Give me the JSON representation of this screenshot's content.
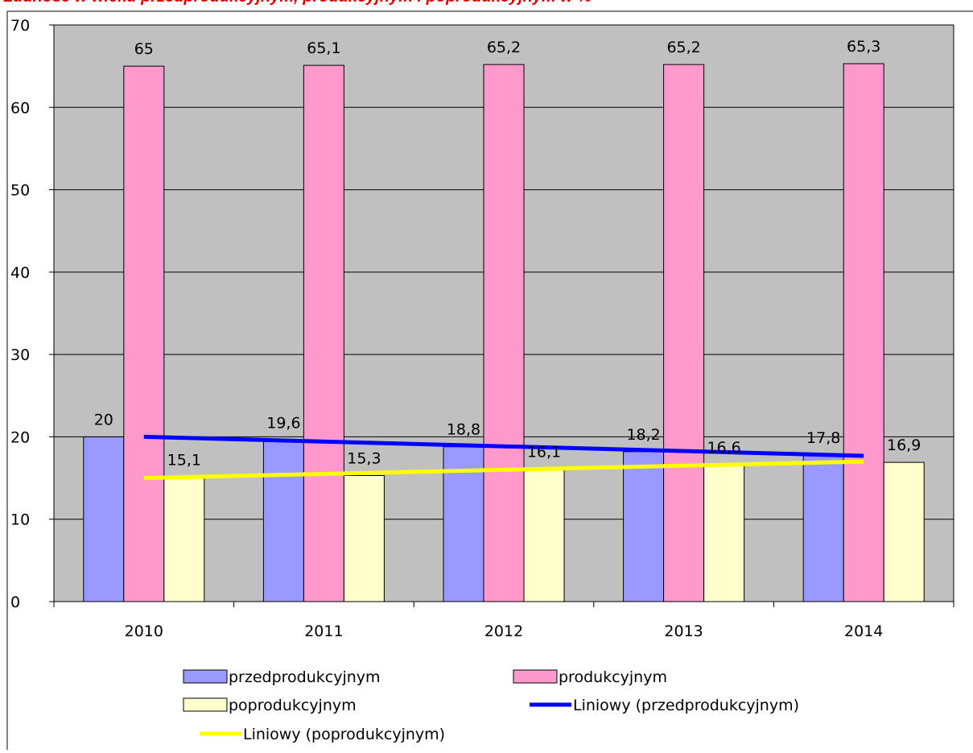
{
  "chart_data": {
    "type": "bar",
    "title": "",
    "xlabel": "",
    "ylabel": "",
    "categories": [
      "2010",
      "2011",
      "2012",
      "2013",
      "2014"
    ],
    "ylim": [
      0,
      70
    ],
    "yticks": [
      "0",
      "10",
      "20",
      "30",
      "40",
      "50",
      "60",
      "70"
    ],
    "grid": true,
    "legend_position": "bottom",
    "series": [
      {
        "name": "przedprodukcyjnym",
        "kind": "bar",
        "color": "#9999ff",
        "values": [
          20,
          19.6,
          18.8,
          18.2,
          17.8
        ],
        "labels": [
          "20",
          "19,6",
          "18,8",
          "18,2",
          "17,8"
        ]
      },
      {
        "name": "produkcyjnym",
        "kind": "bar",
        "color": "#ff99cc",
        "values": [
          65,
          65.1,
          65.2,
          65.2,
          65.3
        ],
        "labels": [
          "65",
          "65,1",
          "65,2",
          "65,2",
          "65,3"
        ]
      },
      {
        "name": "poprodukcyjnym",
        "kind": "bar",
        "color": "#ffffcc",
        "values": [
          15.1,
          15.3,
          16.1,
          16.6,
          16.9
        ],
        "labels": [
          "15,1",
          "15,3",
          "16,1",
          "16,6",
          "16,9"
        ]
      }
    ],
    "trendlines": [
      {
        "name": "Liniowy (przedprodukcyjnym)",
        "kind": "linear-trend",
        "of": "przedprodukcyjnym",
        "color": "#0000ff",
        "start": 20.0,
        "end": 17.7
      },
      {
        "name": "Liniowy (poprodukcyjnym)",
        "kind": "linear-trend",
        "of": "poprodukcyjnym",
        "color": "#ffff00",
        "start": 15.0,
        "end": 17.0
      }
    ],
    "colors": {
      "plot_background": "#c0c0c0",
      "gridline": "#000000",
      "title_text": "#dd0000"
    }
  },
  "header": {
    "clipped_title": "Ludność w wieku przedprodukcyjnym, produkcyjnym i poprodukcyjnym w %"
  }
}
